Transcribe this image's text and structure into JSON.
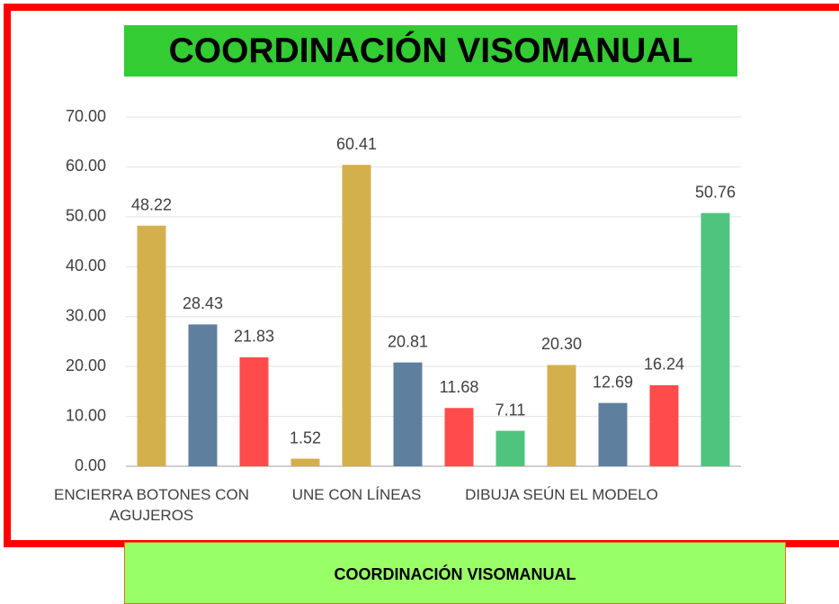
{
  "chart_data": {
    "type": "bar",
    "title": "COORDINACIÓN VISOMANUAL",
    "caption": "COORDINACIÓN VISOMANUAL",
    "categories": [
      "ENCIERRA BOTONES CON AGUJEROS",
      null,
      null,
      null,
      "UNE CON LÍNEAS",
      null,
      null,
      null,
      "DIBUJA SEÚN EL MODELO",
      null,
      null,
      null
    ],
    "values": [
      48.22,
      28.43,
      21.83,
      1.52,
      60.41,
      20.81,
      11.68,
      7.11,
      20.3,
      12.69,
      16.24,
      50.76
    ],
    "value_labels": [
      "48.22",
      "28.43",
      "21.83",
      "1.52",
      "60.41",
      "20.81",
      "11.68",
      "7.11",
      "20.30",
      "12.69",
      "16.24",
      "50.76"
    ],
    "colors": [
      "#d4b04c",
      "#5f7f9f",
      "#ff4b4b",
      "#d4b04c",
      "#d4b04c",
      "#5f7f9f",
      "#ff4b4b",
      "#4fc47f",
      "#d4b04c",
      "#5f7f9f",
      "#ff4b4b",
      "#4fc47f"
    ],
    "ylim": [
      0,
      70
    ],
    "yticks": [
      {
        "value": 0,
        "label": "0.00"
      },
      {
        "value": 10,
        "label": "10.00"
      },
      {
        "value": 20,
        "label": "20.00"
      },
      {
        "value": 30,
        "label": "30.00"
      },
      {
        "value": 40,
        "label": "40.00"
      },
      {
        "value": 50,
        "label": "50.00"
      },
      {
        "value": 60,
        "label": "60.00"
      },
      {
        "value": 70,
        "label": "70.00"
      }
    ],
    "grid": true
  }
}
